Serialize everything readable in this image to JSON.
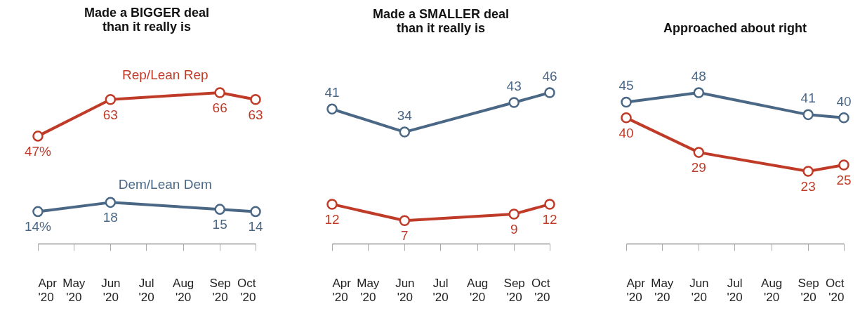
{
  "chart_data": [
    {
      "type": "line",
      "title": "Made a BIGGER deal\nthan it really is",
      "x": [
        "2020-04",
        "2020-06",
        "2020-09",
        "2020-10"
      ],
      "xlim": [
        "2020-04",
        "2020-10"
      ],
      "xticks": [
        {
          "value": "2020-04",
          "label": "Apr '20"
        },
        {
          "value": "2020-05",
          "label": "May '20"
        },
        {
          "value": "2020-06",
          "label": "Jun '20"
        },
        {
          "value": "2020-07",
          "label": "Jul '20"
        },
        {
          "value": "2020-08",
          "label": "Aug '20"
        },
        {
          "value": "2020-09",
          "label": "Sep '20"
        },
        {
          "value": "2020-10",
          "label": "Oct '20"
        }
      ],
      "tick_labels": "x",
      "marker": "circle",
      "legend": false,
      "series": [
        {
          "name": "Rep/Lean Rep",
          "color": "#bf3b27",
          "values": [
            47,
            63,
            66,
            63
          ],
          "value_labels": [
            "47%",
            "63",
            "66",
            "63"
          ]
        },
        {
          "name": "Dem/Lean Dem",
          "color": "#4a6886",
          "values": [
            14,
            18,
            15,
            14
          ],
          "value_labels": [
            "14%",
            "18",
            "15",
            "14"
          ]
        }
      ]
    },
    {
      "type": "line",
      "title": "Made a SMALLER deal\nthan it really is",
      "x": [
        "2020-04",
        "2020-06",
        "2020-09",
        "2020-10"
      ],
      "xlim": [
        "2020-04",
        "2020-10"
      ],
      "xticks": [
        {
          "value": "2020-04",
          "label": "Apr '20"
        },
        {
          "value": "2020-05",
          "label": "May '20"
        },
        {
          "value": "2020-06",
          "label": "Jun '20"
        },
        {
          "value": "2020-07",
          "label": "Jul '20"
        },
        {
          "value": "2020-08",
          "label": "Aug '20"
        },
        {
          "value": "2020-09",
          "label": "Sep '20"
        },
        {
          "value": "2020-10",
          "label": "Oct '20"
        }
      ],
      "tick_labels": "x",
      "marker": "circle",
      "legend": false,
      "series": [
        {
          "color": "#bf3b27",
          "values": [
            12,
            7,
            9,
            12
          ],
          "value_labels": [
            "12",
            "7",
            "9",
            "12"
          ]
        },
        {
          "color": "#4a6886",
          "values": [
            41,
            34,
            43,
            46
          ],
          "value_labels": [
            "41",
            "34",
            "43",
            "46"
          ]
        }
      ]
    },
    {
      "type": "line",
      "title": "Approached about right",
      "x": [
        "2020-04",
        "2020-06",
        "2020-09",
        "2020-10"
      ],
      "xlim": [
        "2020-04",
        "2020-10"
      ],
      "xticks": [
        {
          "value": "2020-04",
          "label": "Apr '20"
        },
        {
          "value": "2020-05",
          "label": "May '20"
        },
        {
          "value": "2020-06",
          "label": "Jun '20"
        },
        {
          "value": "2020-07",
          "label": "Jul '20"
        },
        {
          "value": "2020-08",
          "label": "Aug '20"
        },
        {
          "value": "2020-09",
          "label": "Sep '20"
        },
        {
          "value": "2020-10",
          "label": "Oct '20"
        }
      ],
      "tick_labels": "x",
      "marker": "circle",
      "legend": false,
      "series": [
        {
          "color": "#bf3b27",
          "values": [
            40,
            29,
            23,
            25
          ],
          "value_labels": [
            "40",
            "29",
            "23",
            "25"
          ]
        },
        {
          "color": "#4a6886",
          "values": [
            45,
            48,
            41,
            40
          ],
          "value_labels": [
            "45",
            "48",
            "41",
            "40"
          ]
        }
      ]
    }
  ]
}
